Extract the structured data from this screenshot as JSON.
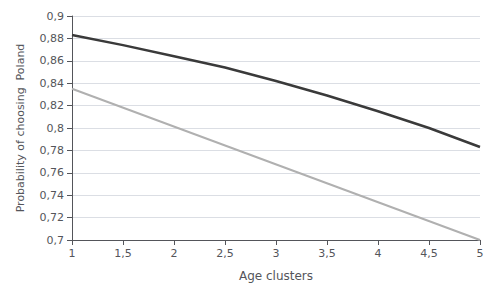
{
  "chart_data": {
    "type": "line",
    "xlabel": "Age clusters",
    "ylabel": "Probability of choosing  Poland",
    "series": [
      {
        "color": "#3a3a3a",
        "x": [
          1,
          1.5,
          2,
          2.5,
          3,
          3.5,
          4,
          4.5,
          5
        ],
        "values": [
          0.883,
          0.874,
          0.864,
          0.854,
          0.842,
          0.829,
          0.815,
          0.8,
          0.783
        ]
      },
      {
        "color": "#b0b0b0",
        "x": [
          1,
          5
        ],
        "values": [
          0.835,
          0.7
        ]
      }
    ],
    "xlim": [
      1,
      5
    ],
    "ylim": [
      0.7,
      0.9
    ],
    "xticks": [
      1,
      {
        "value": 1.5,
        "label": "1,5"
      },
      2,
      {
        "value": 2.5,
        "label": "2,5"
      },
      3,
      {
        "value": 3.5,
        "label": "3,5"
      },
      4,
      {
        "value": 4.5,
        "label": "4,5"
      },
      5
    ],
    "yticks": [
      {
        "value": 0.7,
        "label": "0,7"
      },
      {
        "value": 0.72,
        "label": "0,72"
      },
      {
        "value": 0.74,
        "label": "0,74"
      },
      {
        "value": 0.76,
        "label": "0,76"
      },
      {
        "value": 0.78,
        "label": "0,78"
      },
      {
        "value": 0.8,
        "label": "0,8"
      },
      {
        "value": 0.82,
        "label": "0,82"
      },
      {
        "value": 0.84,
        "label": "0,84"
      },
      {
        "value": 0.86,
        "label": "0,86"
      },
      {
        "value": 0.88,
        "label": "0,88"
      },
      {
        "value": 0.9,
        "label": "0,9"
      }
    ],
    "grid": "y"
  }
}
